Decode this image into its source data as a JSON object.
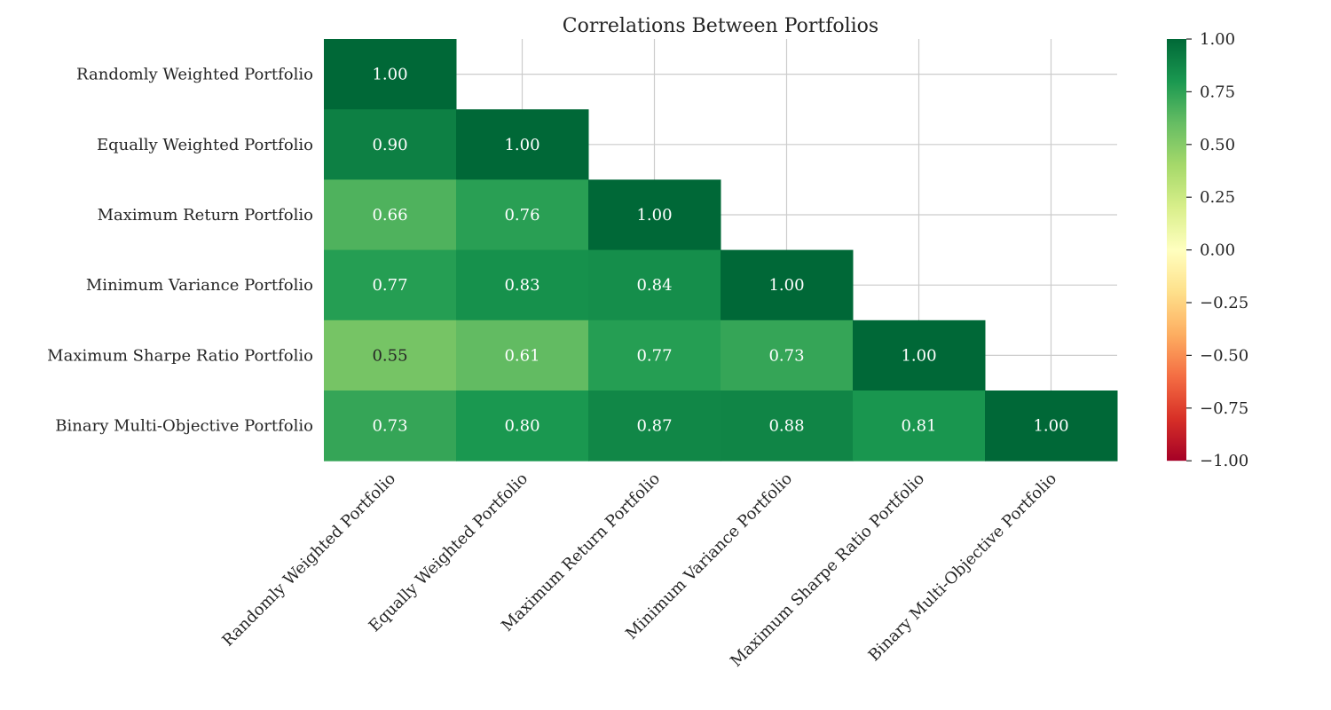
{
  "chart_data": {
    "type": "heatmap",
    "title": "Correlations Between Portfolios",
    "labels": [
      "Randomly Weighted Portfolio",
      "Equally Weighted Portfolio",
      "Maximum Return Portfolio",
      "Minimum Variance Portfolio",
      "Maximum Sharpe Ratio Portfolio",
      "Binary Multi-Objective Portfolio"
    ],
    "matrix": [
      [
        1.0,
        null,
        null,
        null,
        null,
        null
      ],
      [
        0.9,
        1.0,
        null,
        null,
        null,
        null
      ],
      [
        0.66,
        0.76,
        1.0,
        null,
        null,
        null
      ],
      [
        0.77,
        0.83,
        0.84,
        1.0,
        null,
        null
      ],
      [
        0.55,
        0.61,
        0.77,
        0.73,
        1.0,
        null
      ],
      [
        0.73,
        0.8,
        0.87,
        0.88,
        0.81,
        1.0
      ]
    ],
    "mask": "upper triangle",
    "colormap": "RdYlGn",
    "vmin": -1.0,
    "vmax": 1.0,
    "colorbar_ticks": [
      "1.00",
      "0.75",
      "0.50",
      "0.25",
      "0.00",
      "−0.25",
      "−0.50",
      "−0.75",
      "−1.00"
    ],
    "colorbar_tick_values": [
      1.0,
      0.75,
      0.5,
      0.25,
      0.0,
      -0.25,
      -0.5,
      -0.75,
      -1.0
    ],
    "value_format": "0.00",
    "grid": true,
    "xtick_rotation_deg": 45,
    "colorbar_position": "right"
  }
}
